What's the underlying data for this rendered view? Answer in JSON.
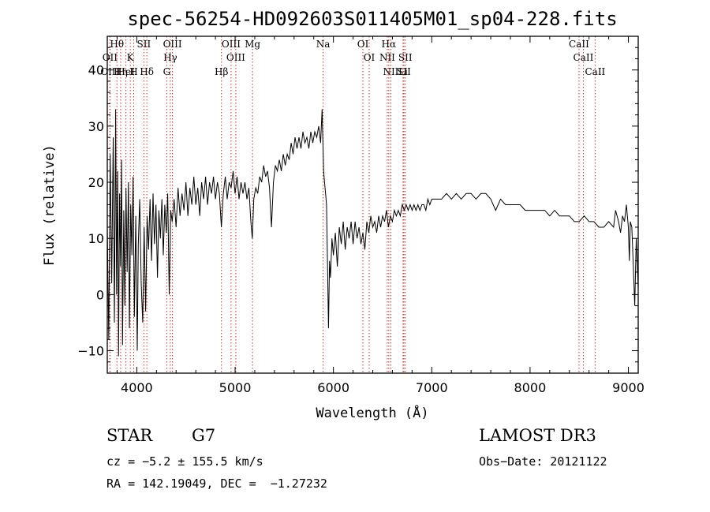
{
  "chart_data": {
    "type": "line",
    "title": "spec-56254-HD092603S011405M01_sp04-228.fits",
    "xlabel": "Wavelength (Å)",
    "ylabel": "Flux (relative)",
    "xlim": [
      3700,
      9100
    ],
    "ylim": [
      -14,
      46
    ],
    "xticks": [
      4000,
      5000,
      6000,
      7000,
      8000,
      9000
    ],
    "yticks": [
      -10,
      0,
      10,
      20,
      30,
      40
    ],
    "series": [
      {
        "name": "flux",
        "points": [
          [
            3700,
            12
          ],
          [
            3715,
            -8
          ],
          [
            3730,
            25
          ],
          [
            3745,
            2
          ],
          [
            3760,
            28
          ],
          [
            3772,
            -5
          ],
          [
            3785,
            33
          ],
          [
            3795,
            0
          ],
          [
            3805,
            22
          ],
          [
            3815,
            -11
          ],
          [
            3825,
            18
          ],
          [
            3835,
            5
          ],
          [
            3845,
            24
          ],
          [
            3855,
            -9
          ],
          [
            3868,
            15
          ],
          [
            3878,
            -2
          ],
          [
            3890,
            19
          ],
          [
            3902,
            4
          ],
          [
            3915,
            20
          ],
          [
            3925,
            -6
          ],
          [
            3938,
            16
          ],
          [
            3950,
            7
          ],
          [
            3962,
            21
          ],
          [
            3975,
            -4
          ],
          [
            3990,
            14
          ],
          [
            4005,
            -10
          ],
          [
            4015,
            9
          ],
          [
            4030,
            17
          ],
          [
            4045,
            2
          ],
          [
            4060,
            -5
          ],
          [
            4075,
            12
          ],
          [
            4090,
            -3
          ],
          [
            4105,
            14
          ],
          [
            4120,
            8
          ],
          [
            4135,
            17
          ],
          [
            4150,
            6
          ],
          [
            4165,
            18
          ],
          [
            4180,
            9
          ],
          [
            4195,
            16
          ],
          [
            4210,
            3
          ],
          [
            4225,
            15
          ],
          [
            4240,
            10
          ],
          [
            4255,
            17
          ],
          [
            4270,
            7
          ],
          [
            4285,
            16
          ],
          [
            4300,
            11
          ],
          [
            4315,
            18
          ],
          [
            4330,
            0
          ],
          [
            4345,
            15
          ],
          [
            4360,
            13
          ],
          [
            4380,
            17
          ],
          [
            4400,
            12
          ],
          [
            4420,
            19
          ],
          [
            4440,
            14
          ],
          [
            4460,
            18
          ],
          [
            4480,
            15
          ],
          [
            4500,
            20
          ],
          [
            4520,
            14
          ],
          [
            4540,
            19
          ],
          [
            4560,
            16
          ],
          [
            4580,
            21
          ],
          [
            4600,
            16
          ],
          [
            4620,
            19
          ],
          [
            4640,
            14
          ],
          [
            4660,
            20
          ],
          [
            4680,
            17
          ],
          [
            4700,
            21
          ],
          [
            4720,
            16
          ],
          [
            4740,
            20
          ],
          [
            4760,
            18
          ],
          [
            4780,
            21
          ],
          [
            4800,
            17
          ],
          [
            4820,
            20
          ],
          [
            4840,
            18
          ],
          [
            4860,
            12
          ],
          [
            4880,
            18
          ],
          [
            4900,
            21
          ],
          [
            4920,
            17
          ],
          [
            4940,
            20
          ],
          [
            4960,
            19
          ],
          [
            4980,
            22
          ],
          [
            5000,
            18
          ],
          [
            5020,
            21
          ],
          [
            5040,
            17
          ],
          [
            5060,
            20
          ],
          [
            5080,
            18
          ],
          [
            5100,
            20
          ],
          [
            5120,
            17
          ],
          [
            5140,
            19
          ],
          [
            5160,
            13
          ],
          [
            5175,
            10
          ],
          [
            5190,
            17
          ],
          [
            5210,
            19
          ],
          [
            5230,
            18
          ],
          [
            5250,
            21
          ],
          [
            5270,
            20
          ],
          [
            5290,
            23
          ],
          [
            5310,
            21
          ],
          [
            5330,
            22
          ],
          [
            5350,
            19
          ],
          [
            5370,
            12
          ],
          [
            5390,
            20
          ],
          [
            5410,
            23
          ],
          [
            5430,
            22
          ],
          [
            5450,
            24
          ],
          [
            5470,
            22
          ],
          [
            5490,
            25
          ],
          [
            5510,
            23
          ],
          [
            5530,
            25
          ],
          [
            5550,
            24
          ],
          [
            5570,
            27
          ],
          [
            5590,
            25
          ],
          [
            5610,
            28
          ],
          [
            5630,
            26
          ],
          [
            5650,
            28
          ],
          [
            5670,
            26
          ],
          [
            5690,
            29
          ],
          [
            5710,
            27
          ],
          [
            5730,
            28
          ],
          [
            5750,
            26
          ],
          [
            5770,
            29
          ],
          [
            5790,
            27
          ],
          [
            5810,
            29
          ],
          [
            5830,
            28
          ],
          [
            5850,
            30
          ],
          [
            5870,
            27
          ],
          [
            5885,
            33
          ],
          [
            5900,
            22
          ],
          [
            5910,
            20
          ],
          [
            5920,
            18
          ],
          [
            5930,
            16
          ],
          [
            5940,
            5
          ],
          [
            5950,
            -6
          ],
          [
            5960,
            6
          ],
          [
            5970,
            3
          ],
          [
            5985,
            10
          ],
          [
            6000,
            7
          ],
          [
            6020,
            11
          ],
          [
            6040,
            5
          ],
          [
            6060,
            12
          ],
          [
            6080,
            9
          ],
          [
            6100,
            13
          ],
          [
            6120,
            8
          ],
          [
            6140,
            12
          ],
          [
            6160,
            10
          ],
          [
            6180,
            13
          ],
          [
            6200,
            9
          ],
          [
            6220,
            13
          ],
          [
            6240,
            10
          ],
          [
            6260,
            12
          ],
          [
            6280,
            9
          ],
          [
            6300,
            11
          ],
          [
            6320,
            8
          ],
          [
            6340,
            13
          ],
          [
            6360,
            11
          ],
          [
            6380,
            14
          ],
          [
            6400,
            12
          ],
          [
            6420,
            13
          ],
          [
            6440,
            11
          ],
          [
            6460,
            14
          ],
          [
            6480,
            12
          ],
          [
            6500,
            14
          ],
          [
            6520,
            13
          ],
          [
            6540,
            15
          ],
          [
            6560,
            12
          ],
          [
            6580,
            14
          ],
          [
            6600,
            13
          ],
          [
            6620,
            15
          ],
          [
            6640,
            14
          ],
          [
            6660,
            15
          ],
          [
            6680,
            14
          ],
          [
            6700,
            16
          ],
          [
            6720,
            15
          ],
          [
            6740,
            16
          ],
          [
            6760,
            15
          ],
          [
            6780,
            16
          ],
          [
            6800,
            15
          ],
          [
            6820,
            16
          ],
          [
            6840,
            15
          ],
          [
            6860,
            16
          ],
          [
            6880,
            15
          ],
          [
            6900,
            16
          ],
          [
            6920,
            16
          ],
          [
            6940,
            15
          ],
          [
            6960,
            17
          ],
          [
            6980,
            16
          ],
          [
            7000,
            17
          ],
          [
            7050,
            17
          ],
          [
            7100,
            17
          ],
          [
            7150,
            18
          ],
          [
            7200,
            17
          ],
          [
            7250,
            18
          ],
          [
            7300,
            17
          ],
          [
            7350,
            18
          ],
          [
            7400,
            18
          ],
          [
            7450,
            17
          ],
          [
            7500,
            18
          ],
          [
            7550,
            18
          ],
          [
            7600,
            17
          ],
          [
            7650,
            15
          ],
          [
            7700,
            17
          ],
          [
            7750,
            16
          ],
          [
            7800,
            16
          ],
          [
            7850,
            16
          ],
          [
            7900,
            16
          ],
          [
            7950,
            15
          ],
          [
            8000,
            15
          ],
          [
            8050,
            15
          ],
          [
            8100,
            15
          ],
          [
            8150,
            15
          ],
          [
            8200,
            14
          ],
          [
            8250,
            15
          ],
          [
            8300,
            14
          ],
          [
            8350,
            14
          ],
          [
            8400,
            14
          ],
          [
            8450,
            13
          ],
          [
            8500,
            13
          ],
          [
            8550,
            14
          ],
          [
            8600,
            13
          ],
          [
            8650,
            13
          ],
          [
            8700,
            12
          ],
          [
            8750,
            12
          ],
          [
            8800,
            13
          ],
          [
            8850,
            12
          ],
          [
            8870,
            15
          ],
          [
            8900,
            13
          ],
          [
            8920,
            11
          ],
          [
            8940,
            14
          ],
          [
            8960,
            13
          ],
          [
            8980,
            16
          ],
          [
            9000,
            12
          ],
          [
            9010,
            6
          ],
          [
            9020,
            13
          ],
          [
            9035,
            12
          ],
          [
            9050,
            5
          ],
          [
            9065,
            -2
          ],
          [
            9080,
            10
          ],
          [
            9100,
            1
          ]
        ]
      }
    ],
    "lines": [
      {
        "label": "Hθ",
        "wl": 3798
      },
      {
        "label": "OII",
        "wl": 3727
      },
      {
        "label": "OIII",
        "wl": 3727
      },
      {
        "label": "Hη",
        "wl": 3836
      },
      {
        "label": "K",
        "wl": 3934
      },
      {
        "label": "HeI",
        "wl": 3889
      },
      {
        "label": "H",
        "wl": 3969
      },
      {
        "label": "SII",
        "wl": 4072
      },
      {
        "label": "Hδ",
        "wl": 4102
      },
      {
        "label": "OIII",
        "wl": 4363
      },
      {
        "label": "Hγ",
        "wl": 4341
      },
      {
        "label": "G",
        "wl": 4305
      },
      {
        "label": "OIII",
        "wl": 4959
      },
      {
        "label": "OIII",
        "wl": 5007
      },
      {
        "label": "Hβ",
        "wl": 4861
      },
      {
        "label": "Mg",
        "wl": 5177
      },
      {
        "label": "Na",
        "wl": 5895
      },
      {
        "label": "OI",
        "wl": 6300
      },
      {
        "label": "OI",
        "wl": 6364
      },
      {
        "label": "Hα",
        "wl": 6563
      },
      {
        "label": "NII",
        "wl": 6548
      },
      {
        "label": "NII",
        "wl": 6584
      },
      {
        "label": "SII",
        "wl": 6717
      },
      {
        "label": "SII",
        "wl": 6731
      },
      {
        "label": "Li",
        "wl": 6708
      },
      {
        "label": "CaII",
        "wl": 8498
      },
      {
        "label": "CaII",
        "wl": 8542
      },
      {
        "label": "CaII",
        "wl": 8662
      }
    ]
  },
  "footer": {
    "class_label": "STAR",
    "subclass": "G7",
    "cz": "cz = −5.2 ± 155.5 km/s",
    "coords": "RA = 142.19049, DEC =  −1.27232",
    "survey": "LAMOST DR3",
    "obs_date": "Obs−Date: 20121122"
  },
  "colors": {
    "line_marker": "#c0392b",
    "spectrum": "#000000"
  }
}
